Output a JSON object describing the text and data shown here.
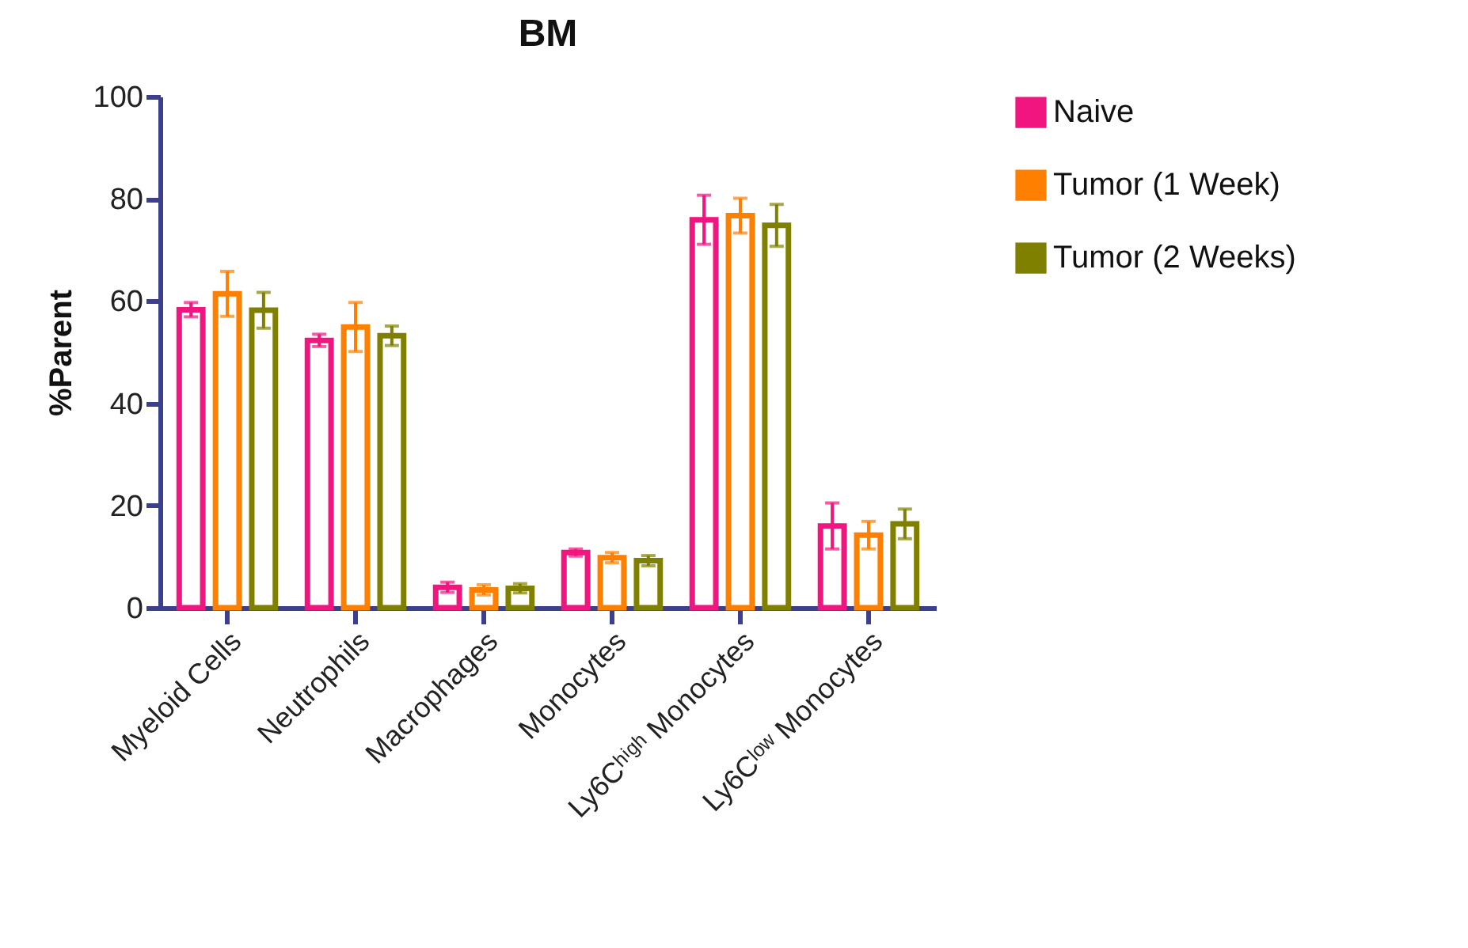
{
  "chart_data": {
    "type": "bar",
    "title": "BM",
    "ylabel": "%Parent",
    "categories": [
      "Myeloid Cells",
      "Neutrophils",
      "Macrophages",
      "Monocytes",
      "Ly6Cʰⁱᵍʰ Monocytes",
      "Ly6Cˡᵒʷ Monocytes"
    ],
    "series": [
      {
        "name": "Naive",
        "color": "#f0157f",
        "values": [
          58.3,
          52.3,
          4.0,
          10.8,
          75.9,
          16.0
        ],
        "errors": [
          1.4,
          1.2,
          1.0,
          0.7,
          4.8,
          4.5
        ]
      },
      {
        "name": "Tumor (1 Week)",
        "color": "#ff8000",
        "values": [
          61.4,
          54.9,
          3.5,
          9.8,
          76.7,
          14.2
        ],
        "errors": [
          4.4,
          4.8,
          1.0,
          1.0,
          3.4,
          2.7
        ]
      },
      {
        "name": "Tumor (2 Weeks)",
        "color": "#808000",
        "values": [
          58.2,
          53.2,
          3.8,
          9.2,
          74.8,
          16.4
        ],
        "errors": [
          3.5,
          1.9,
          0.9,
          1.0,
          4.1,
          2.9
        ]
      }
    ],
    "ylim": [
      0,
      100
    ],
    "yticks": [
      0,
      20,
      40,
      60,
      80,
      100
    ],
    "grid": false,
    "legend": "top right"
  }
}
